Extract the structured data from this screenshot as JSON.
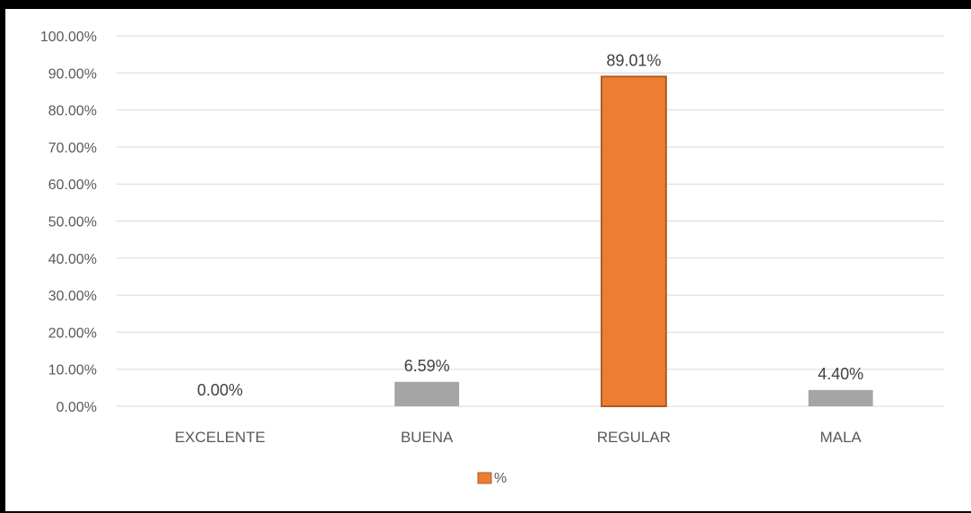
{
  "chart_data": {
    "type": "bar",
    "title": "",
    "xlabel": "",
    "ylabel": "",
    "categories": [
      "EXCELENTE",
      "BUENA",
      "REGULAR",
      "MALA"
    ],
    "series": [
      {
        "name": "%",
        "values": [
          0.0,
          6.59,
          89.01,
          4.4
        ],
        "labels": [
          "0.00%",
          "6.59%",
          "89.01%",
          "4.40%"
        ],
        "colors": [
          "#A5A5A5",
          "#A5A5A5",
          "#ED7D31",
          "#A5A5A5"
        ]
      }
    ],
    "ylim": [
      0,
      100
    ],
    "yticks": [
      0,
      10,
      20,
      30,
      40,
      50,
      60,
      70,
      80,
      90,
      100
    ],
    "ytick_labels": [
      "0.00%",
      "10.00%",
      "20.00%",
      "30.00%",
      "40.00%",
      "50.00%",
      "60.00%",
      "70.00%",
      "80.00%",
      "90.00%",
      "100.00%"
    ],
    "grid": true,
    "legend": {
      "position": "bottom",
      "label": "%",
      "swatch_color": "#ED7D31"
    },
    "colors": {
      "highlight": "#ED7D31",
      "highlight_border": "#AE5A21",
      "base": "#A5A5A5",
      "gridline": "#D9D9D9",
      "frame_border": "#000000"
    }
  }
}
